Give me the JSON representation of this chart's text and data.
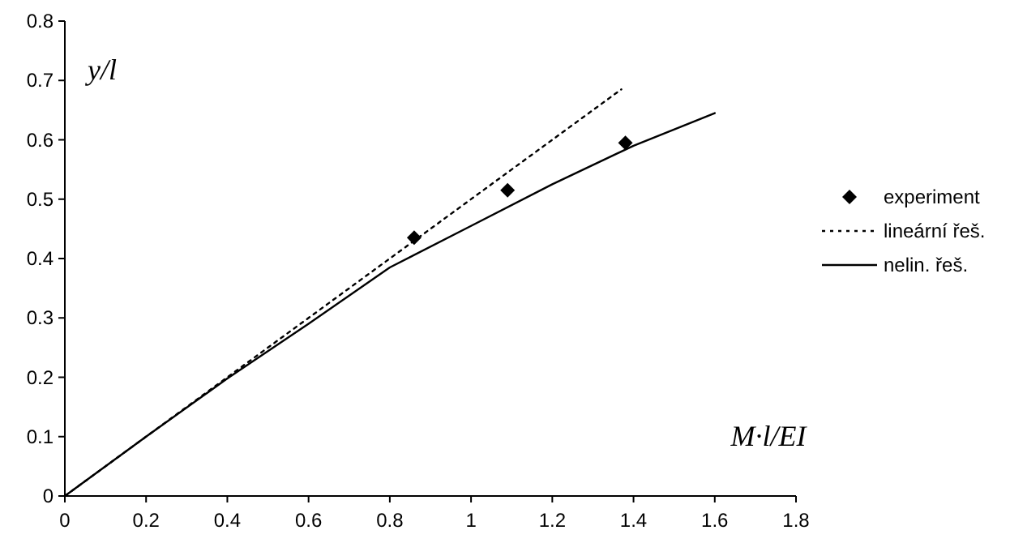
{
  "chart_data": {
    "type": "line",
    "xlabel": "M·l/EI",
    "ylabel": "y/l",
    "xlim": [
      0,
      1.8
    ],
    "ylim": [
      0,
      0.8
    ],
    "xticks": [
      0,
      0.2,
      0.4,
      0.6,
      0.8,
      1,
      1.2,
      1.4,
      1.6,
      1.8
    ],
    "yticks": [
      0,
      0.1,
      0.2,
      0.3,
      0.4,
      0.5,
      0.6,
      0.7,
      0.8
    ],
    "grid": false,
    "legend": "right",
    "series": [
      {
        "name": "experiment",
        "type": "scatter",
        "marker": "diamond",
        "color": "#000000",
        "x": [
          0.86,
          1.09,
          1.38
        ],
        "values": [
          0.435,
          0.515,
          0.595
        ]
      },
      {
        "name": "lineární řeš.",
        "line_style": "dotted",
        "color": "#000000",
        "x": [
          0,
          1.37
        ],
        "values": [
          0,
          0.685
        ]
      },
      {
        "name": "nelin. řeš.",
        "line_style": "solid",
        "color": "#000000",
        "x": [
          0,
          0.2,
          0.4,
          0.6,
          0.8,
          1.0,
          1.2,
          1.4,
          1.6
        ],
        "values": [
          0,
          0.1,
          0.198,
          0.29,
          0.385,
          0.455,
          0.525,
          0.59,
          0.645
        ]
      }
    ]
  }
}
